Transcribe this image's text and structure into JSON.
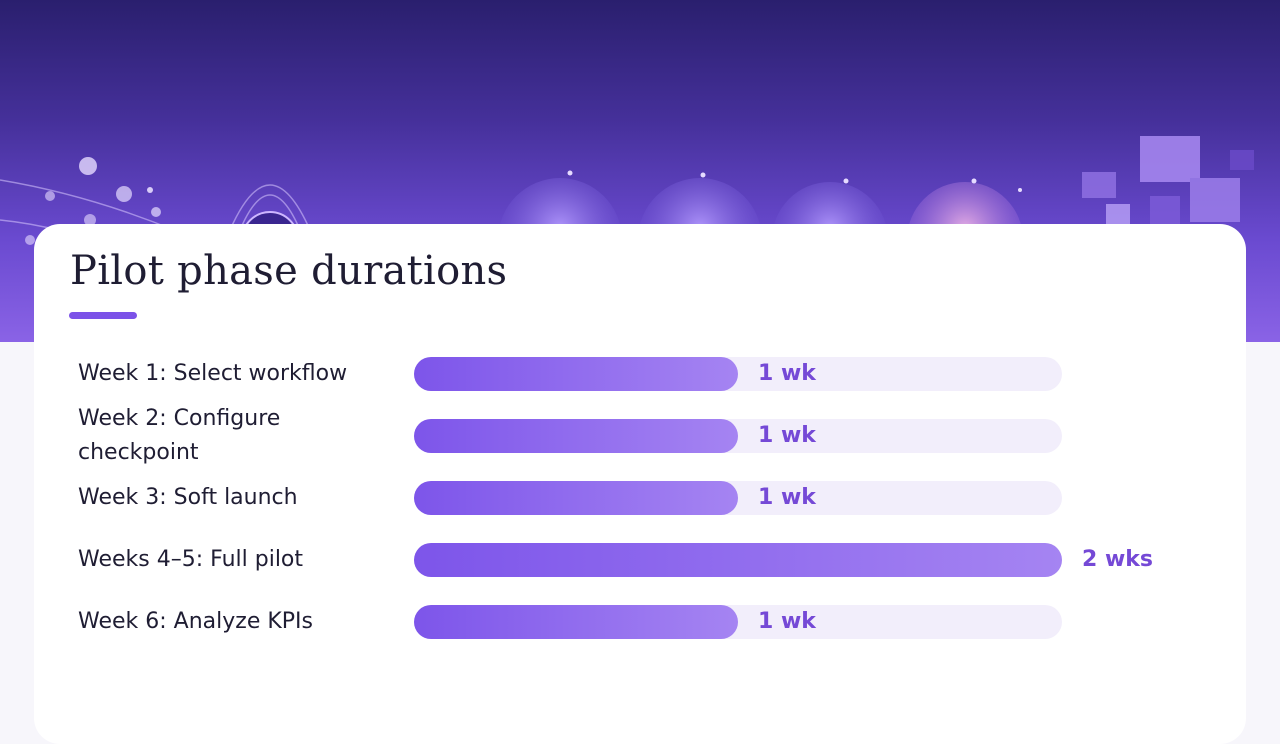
{
  "chart_data": {
    "type": "bar",
    "orientation": "horizontal",
    "title": "Pilot phase durations",
    "categories": [
      "Week 1: Select workflow",
      "Week 2: Configure checkpoint",
      "Week 3: Soft launch",
      "Weeks 4–5: Full pilot",
      "Week 6: Analyze KPIs"
    ],
    "values": [
      1,
      1,
      1,
      2,
      1
    ],
    "data_labels": [
      "1 wk",
      "1 wk",
      "1 wk",
      "2 wks",
      "1 wk"
    ],
    "unit": "weeks",
    "xlim": [
      0,
      2
    ],
    "grid": false,
    "legend": "none"
  },
  "colors": {
    "bar_start": "#7d55ea",
    "bar_end": "#a584f2",
    "track": "#f2eefb",
    "value_text": "#7549d6",
    "accent": "#7c52e8"
  }
}
